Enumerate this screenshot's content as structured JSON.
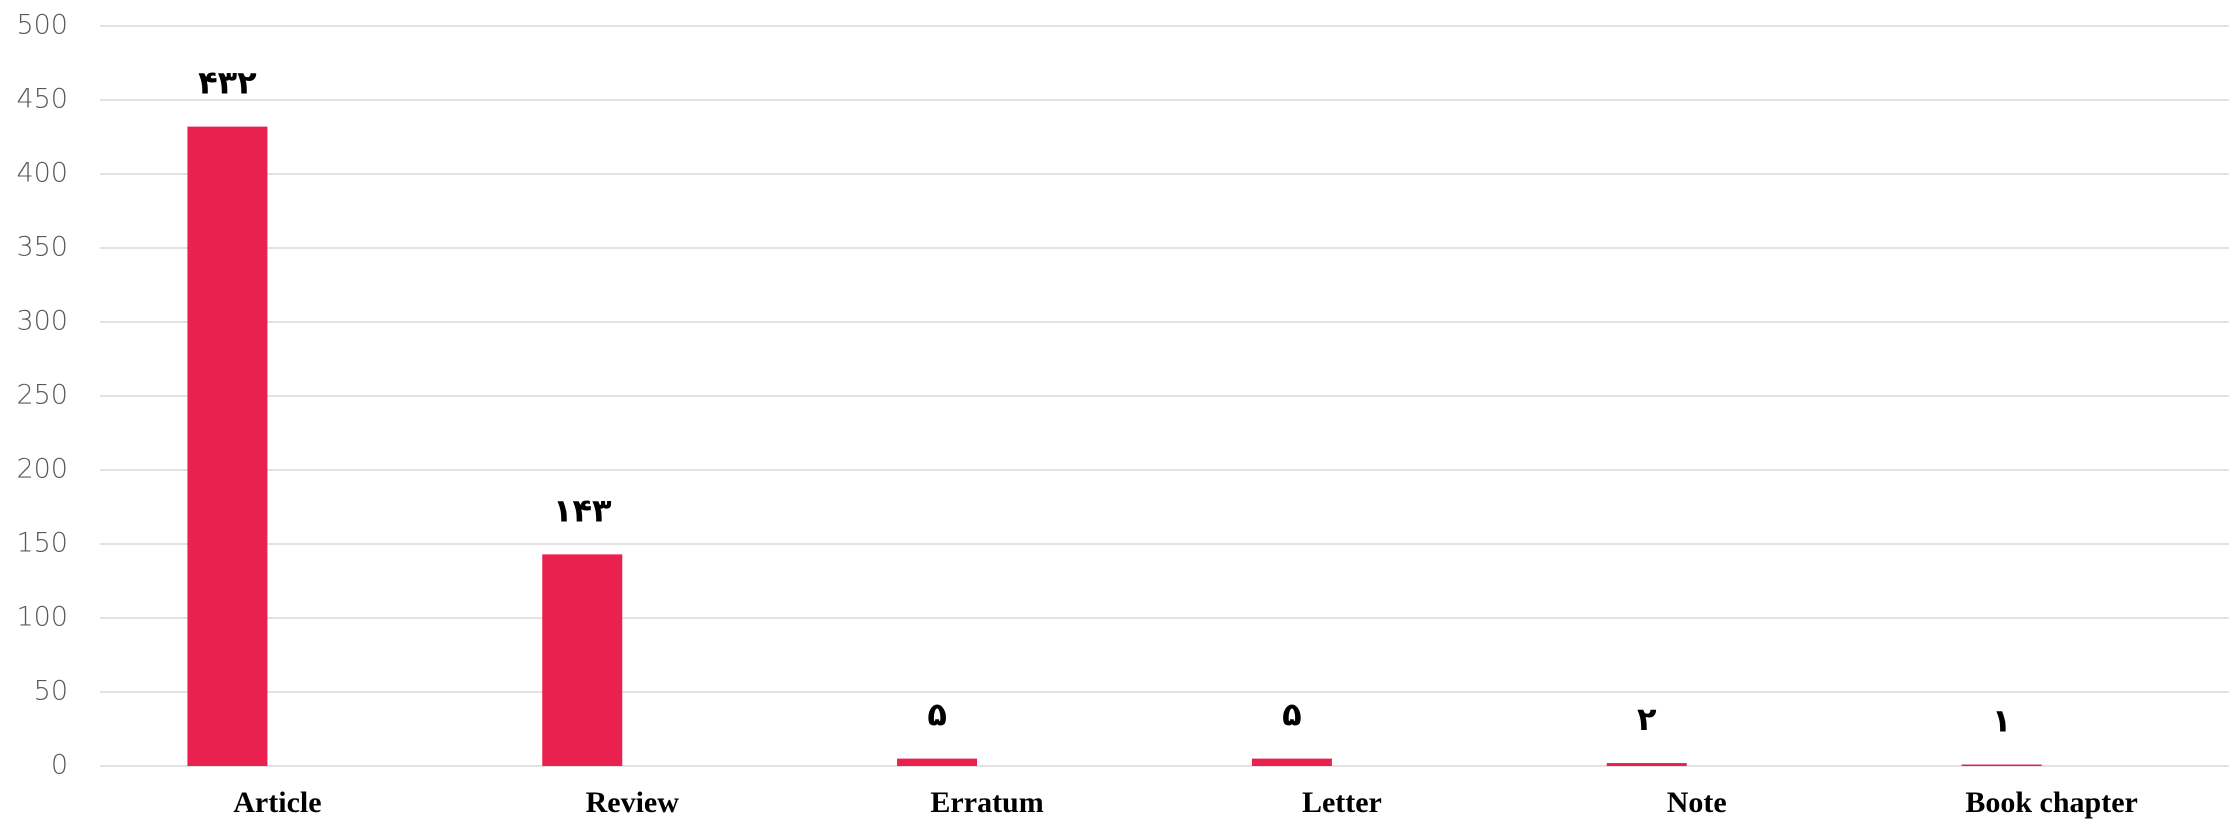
{
  "chart_data": {
    "type": "bar",
    "categories": [
      "Article",
      "Review",
      "Erratum",
      "Letter",
      "Note",
      "Book chapter"
    ],
    "values": [
      432,
      143,
      5,
      5,
      2,
      1
    ],
    "value_labels": [
      "۴۳۲",
      "۱۴۳",
      "۵",
      "۵",
      "۲",
      "۱"
    ],
    "color": "#e8214f",
    "ylim": [
      0,
      500
    ],
    "yticks": [
      0,
      50,
      100,
      150,
      200,
      250,
      300,
      350,
      400,
      450,
      500
    ],
    "grid": true
  }
}
